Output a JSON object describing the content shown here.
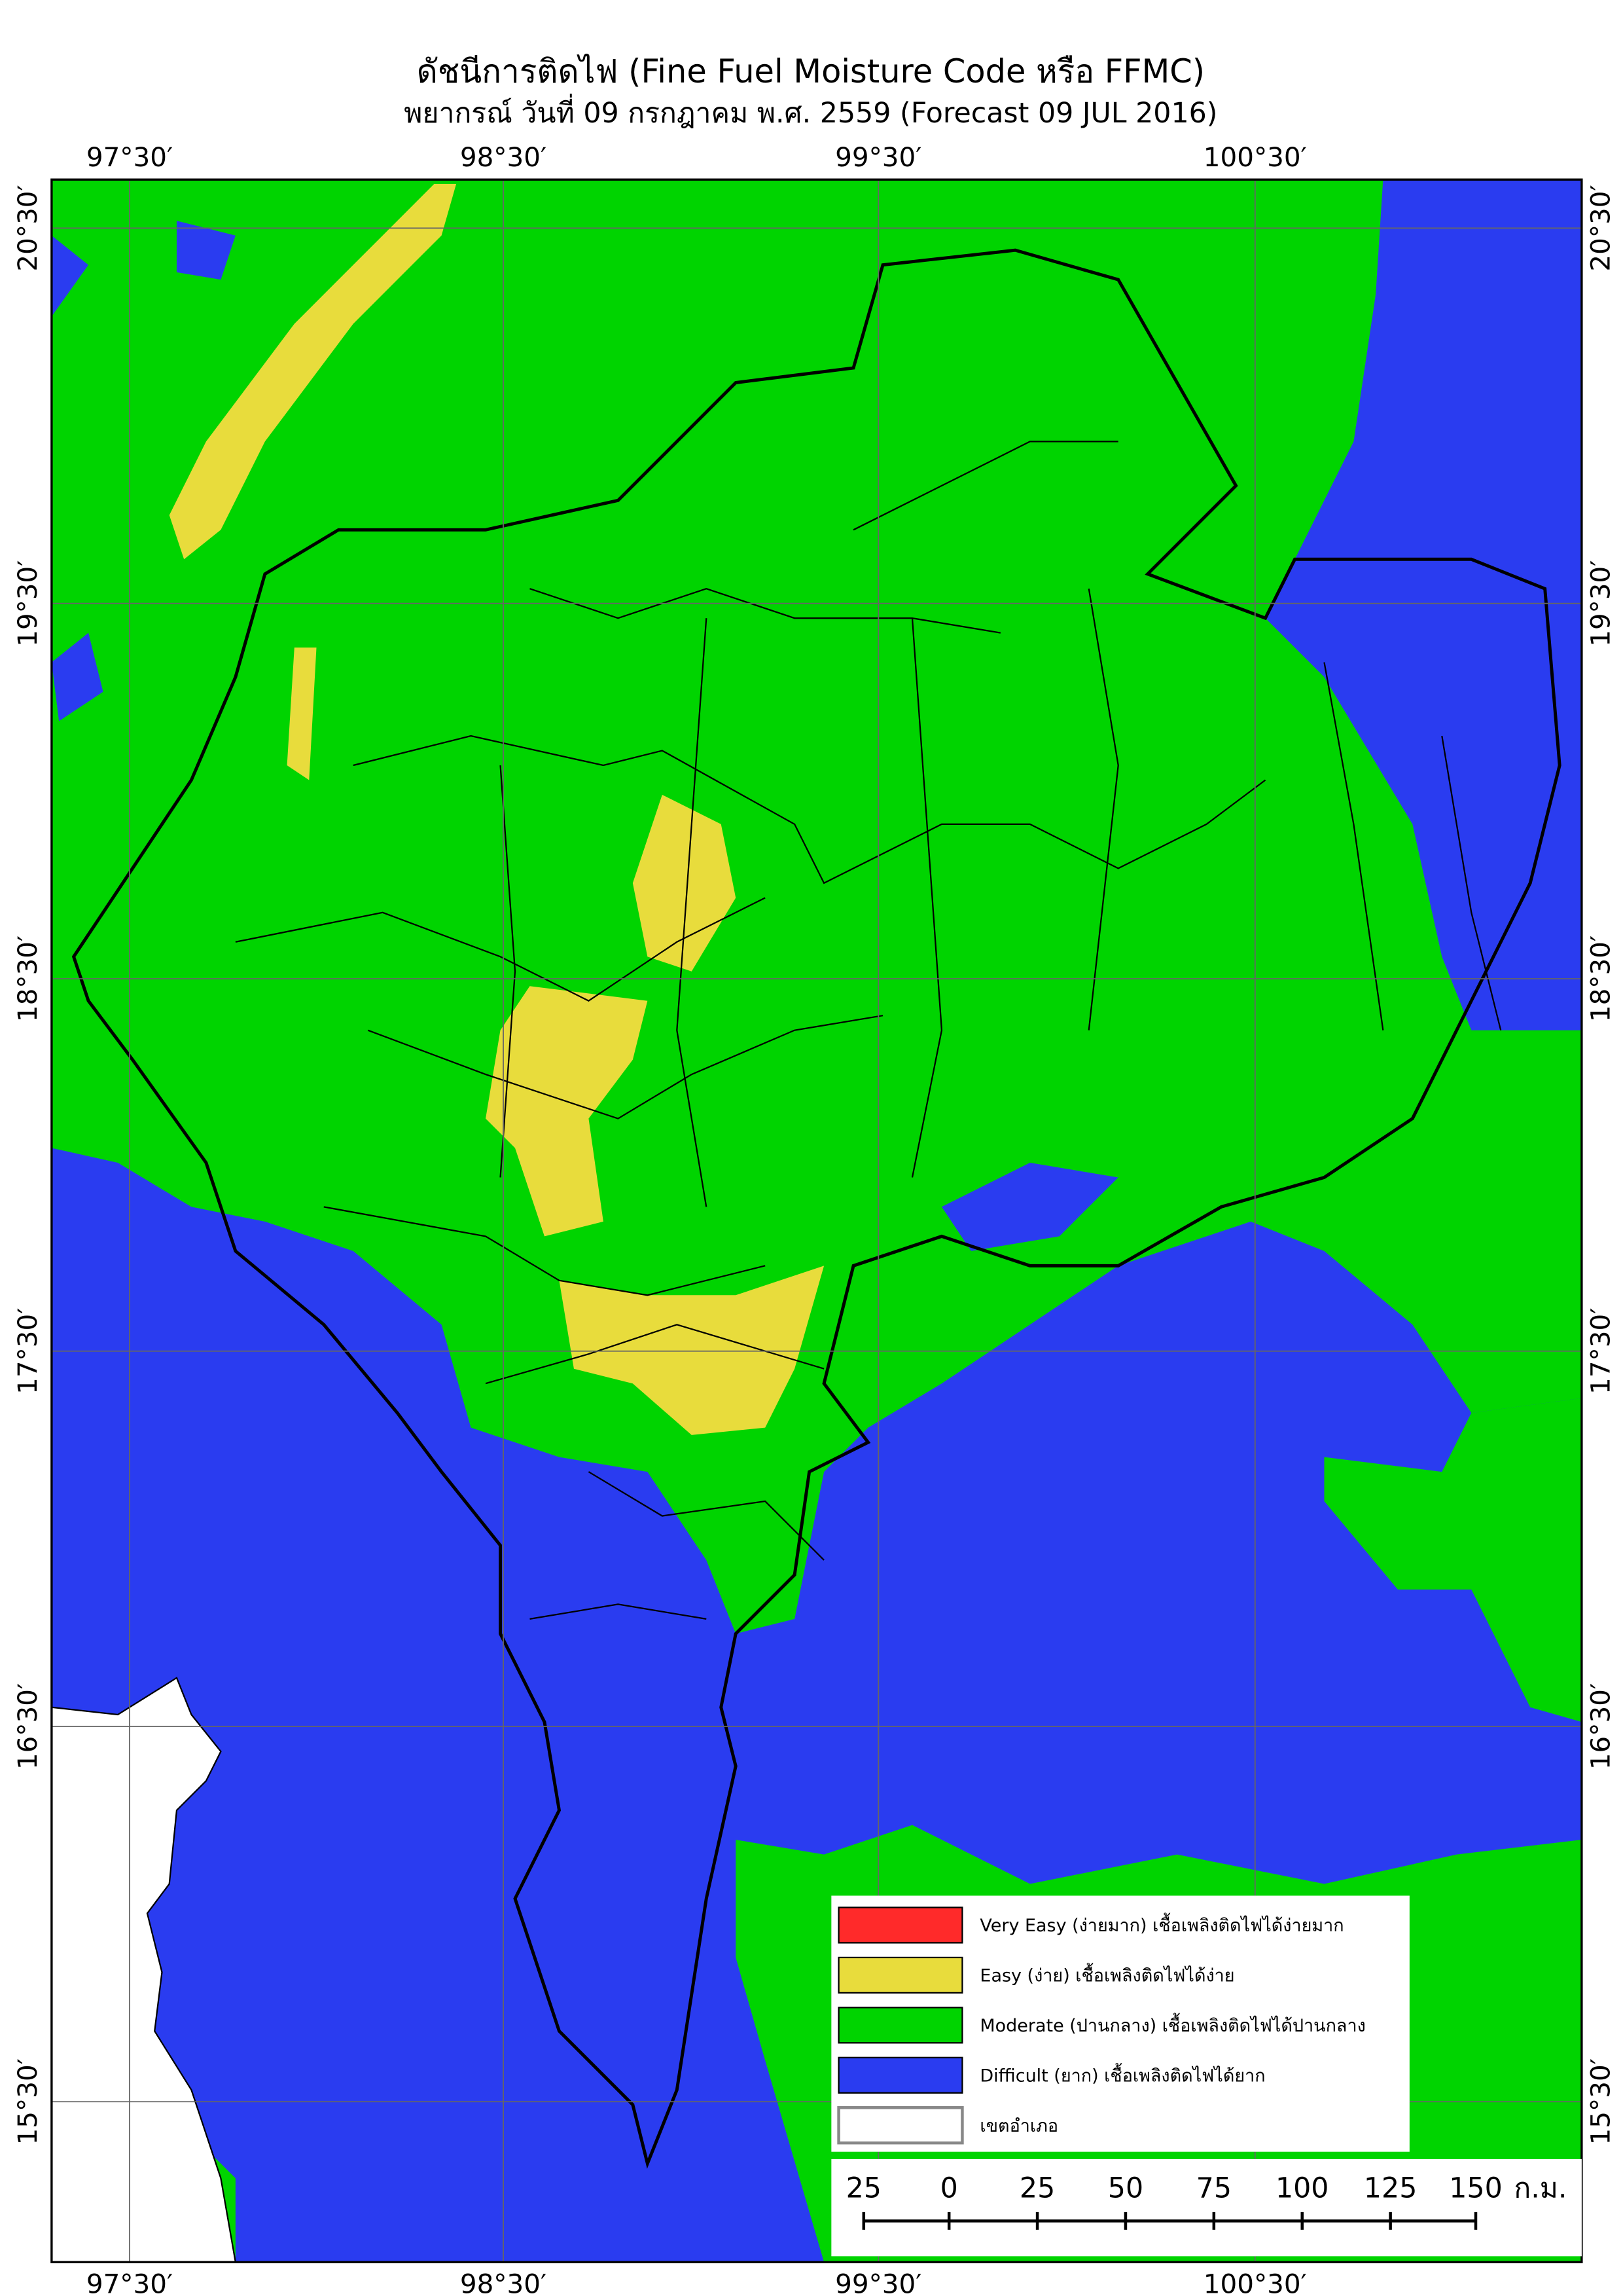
{
  "title": "ดัชนีการติดไฟ (Fine Fuel Moisture Code หรือ FFMC)",
  "subtitle": "พยากรณ์ วันที่ 09 กรกฎาคม พ.ศ. 2559 (Forecast 09 JUL 2016)",
  "longitude_labels": [
    "97°30′",
    "98°30′",
    "99°30′",
    "100°30′"
  ],
  "latitude_labels": [
    "20°30′",
    "19°30′",
    "18°30′",
    "17°30′",
    "16°30′",
    "15°30′"
  ],
  "legend": [
    {
      "label": "Very Easy (ง่ายมาก) เชื้อเพลิงติดไฟได้ง่ายมาก",
      "color": "#ff2a2a"
    },
    {
      "label": "Easy (ง่าย) เชื้อเพลิงติดไฟได้ง่าย",
      "color": "#e8dc3c"
    },
    {
      "label": "Moderate (ปานกลาง) เชื้อเพลิงติดไฟได้ปานกลาง",
      "color": "#00d400"
    },
    {
      "label": "Difficult (ยาก) เชื้อเพลิงติดไฟได้ยาก",
      "color": "#2a3cf0"
    },
    {
      "label": "เขตอำเภอ",
      "color": "#ffffff"
    }
  ],
  "scale_bar": {
    "labels": [
      "25",
      "0",
      "25",
      "50",
      "75",
      "100",
      "125",
      "150"
    ],
    "unit": "ก.ม."
  }
}
